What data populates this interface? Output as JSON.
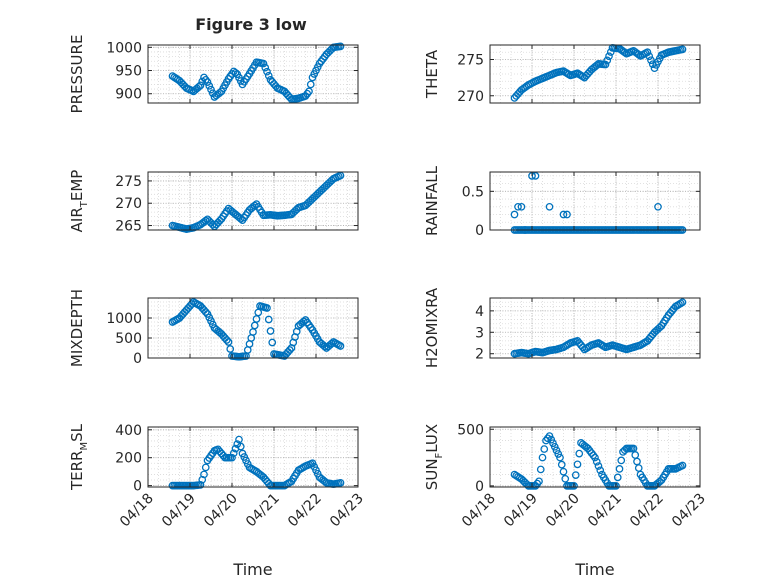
{
  "figure": {
    "title": "Figure 3 low"
  },
  "colors": {
    "marker": "#0072BD",
    "grid": "#B0B0B0",
    "axis": "#262626",
    "axes_bg": "#ffffff"
  },
  "chart_data": [
    {
      "type": "scatter",
      "name": "PRESSURE",
      "ylabel": "PRESSURE",
      "xlabel": "",
      "ylim": [
        880,
        1005
      ],
      "yticks": [
        900,
        950,
        1000
      ],
      "ytick_labels": [
        "900",
        "950",
        "1000"
      ],
      "xlim": [
        "04/18",
        "04/23"
      ],
      "xticks": [
        "04/18",
        "04/19",
        "04/20",
        "04/21",
        "04/22",
        "04/23"
      ],
      "show_xtick_labels": false,
      "grid": true,
      "x": [
        "2024-04-18 14:00",
        "2024-04-18 18:00",
        "2024-04-18 22:00",
        "2024-04-19 02:00",
        "2024-04-19 06:00",
        "2024-04-19 08:00",
        "2024-04-19 10:00",
        "2024-04-19 14:00",
        "2024-04-19 18:00",
        "2024-04-19 22:00",
        "2024-04-20 01:00",
        "2024-04-20 03:00",
        "2024-04-20 06:00",
        "2024-04-20 10:00",
        "2024-04-20 14:00",
        "2024-04-20 18:00",
        "2024-04-20 22:00",
        "2024-04-21 02:00",
        "2024-04-21 06:00",
        "2024-04-21 10:00",
        "2024-04-21 14:00",
        "2024-04-21 18:00",
        "2024-04-21 20:00",
        "2024-04-21 22:00",
        "2024-04-22 02:00",
        "2024-04-22 06:00",
        "2024-04-22 10:00",
        "2024-04-22 14:00"
      ],
      "y": [
        938,
        928,
        912,
        905,
        918,
        935,
        925,
        893,
        905,
        932,
        948,
        942,
        920,
        943,
        968,
        965,
        930,
        912,
        905,
        888,
        890,
        895,
        905,
        935,
        965,
        985,
        1000,
        1002
      ]
    },
    {
      "type": "scatter",
      "name": "THETA",
      "ylabel": "THETA",
      "xlabel": "",
      "ylim": [
        269,
        277
      ],
      "yticks": [
        270,
        275
      ],
      "ytick_labels": [
        "270",
        "275"
      ],
      "xlim": [
        "04/18",
        "04/23"
      ],
      "xticks": [
        "04/18",
        "04/19",
        "04/20",
        "04/21",
        "04/22",
        "04/23"
      ],
      "show_xtick_labels": false,
      "grid": true,
      "x": [
        "2024-04-18 14:00",
        "2024-04-18 18:00",
        "2024-04-18 22:00",
        "2024-04-19 02:00",
        "2024-04-19 06:00",
        "2024-04-19 10:00",
        "2024-04-19 14:00",
        "2024-04-19 18:00",
        "2024-04-19 22:00",
        "2024-04-20 02:00",
        "2024-04-20 06:00",
        "2024-04-20 10:00",
        "2024-04-20 14:00",
        "2024-04-20 18:00",
        "2024-04-20 22:00",
        "2024-04-21 02:00",
        "2024-04-21 06:00",
        "2024-04-21 10:00",
        "2024-04-21 14:00",
        "2024-04-21 18:00",
        "2024-04-21 22:00",
        "2024-04-22 02:00",
        "2024-04-22 06:00",
        "2024-04-22 10:00",
        "2024-04-22 14:00"
      ],
      "y": [
        269.7,
        270.8,
        271.5,
        272.0,
        272.4,
        272.8,
        273.2,
        273.4,
        272.8,
        273.1,
        272.5,
        273.6,
        274.4,
        274.3,
        276.6,
        276.5,
        275.8,
        276.2,
        275.5,
        276.0,
        273.8,
        275.6,
        276.0,
        276.2,
        276.4
      ]
    },
    {
      "type": "scatter",
      "name": "AIR_TEMP",
      "ylabel": "AIR_TEMP",
      "xlabel": "",
      "ylim": [
        264,
        277
      ],
      "yticks": [
        265,
        270,
        275
      ],
      "ytick_labels": [
        "265",
        "270",
        "275"
      ],
      "xlim": [
        "04/18",
        "04/23"
      ],
      "xticks": [
        "04/18",
        "04/19",
        "04/20",
        "04/21",
        "04/22",
        "04/23"
      ],
      "show_xtick_labels": false,
      "grid": true,
      "x": [
        "2024-04-18 14:00",
        "2024-04-18 18:00",
        "2024-04-18 22:00",
        "2024-04-19 02:00",
        "2024-04-19 06:00",
        "2024-04-19 10:00",
        "2024-04-19 14:00",
        "2024-04-19 18:00",
        "2024-04-19 22:00",
        "2024-04-20 02:00",
        "2024-04-20 06:00",
        "2024-04-20 10:00",
        "2024-04-20 14:00",
        "2024-04-20 18:00",
        "2024-04-20 22:00",
        "2024-04-21 02:00",
        "2024-04-21 06:00",
        "2024-04-21 10:00",
        "2024-04-21 14:00",
        "2024-04-21 18:00",
        "2024-04-21 22:00",
        "2024-04-22 02:00",
        "2024-04-22 06:00",
        "2024-04-22 10:00",
        "2024-04-22 14:00"
      ],
      "y": [
        265.0,
        264.6,
        264.2,
        264.5,
        265.2,
        266.4,
        264.8,
        266.5,
        268.8,
        267.5,
        266.2,
        268.5,
        269.8,
        267.3,
        267.4,
        267.2,
        267.3,
        267.5,
        269.0,
        269.5,
        271.0,
        272.5,
        274.0,
        275.5,
        276.2
      ]
    },
    {
      "type": "scatter",
      "name": "RAINFALL",
      "ylabel": "RAINFALL",
      "xlabel": "",
      "ylim": [
        0,
        0.75
      ],
      "yticks": [
        0,
        0.5
      ],
      "ytick_labels": [
        "0",
        "0.5"
      ],
      "xlim": [
        "04/18",
        "04/23"
      ],
      "xticks": [
        "04/18",
        "04/19",
        "04/20",
        "04/21",
        "04/22",
        "04/23"
      ],
      "show_xtick_labels": false,
      "grid": true,
      "x": [
        "2024-04-18 14:00",
        "2024-04-18 16:00",
        "2024-04-18 18:00",
        "2024-04-18 20:00",
        "2024-04-19 00:00",
        "2024-04-19 02:00",
        "2024-04-19 10:00",
        "2024-04-19 18:00",
        "2024-04-19 20:00",
        "2024-04-22 00:00"
      ],
      "y": [
        0.2,
        0.3,
        0.3,
        0.0,
        0.7,
        0.7,
        0.3,
        0.2,
        0.2,
        0.3
      ],
      "baseline": {
        "value": 0,
        "x_start": "2024-04-18 14:00",
        "x_end": "2024-04-22 14:00"
      }
    },
    {
      "type": "scatter",
      "name": "MIXDEPTH",
      "ylabel": "MIXDEPTH",
      "xlabel": "",
      "ylim": [
        0,
        1500
      ],
      "yticks": [
        0,
        500,
        1000
      ],
      "ytick_labels": [
        "0",
        "500",
        "1000"
      ],
      "xlim": [
        "04/18",
        "04/23"
      ],
      "xticks": [
        "04/18",
        "04/19",
        "04/20",
        "04/21",
        "04/22",
        "04/23"
      ],
      "show_xtick_labels": false,
      "grid": true,
      "x": [
        "2024-04-18 14:00",
        "2024-04-18 18:00",
        "2024-04-18 22:00",
        "2024-04-19 02:00",
        "2024-04-19 06:00",
        "2024-04-19 10:00",
        "2024-04-19 14:00",
        "2024-04-19 18:00",
        "2024-04-19 22:00",
        "2024-04-20 00:00",
        "2024-04-20 04:00",
        "2024-04-20 08:00",
        "2024-04-20 12:00",
        "2024-04-20 16:00",
        "2024-04-20 20:00",
        "2024-04-21 00:00",
        "2024-04-21 06:00",
        "2024-04-21 10:00",
        "2024-04-21 14:00",
        "2024-04-21 18:00",
        "2024-04-21 22:00",
        "2024-04-22 02:00",
        "2024-04-22 06:00",
        "2024-04-22 10:00",
        "2024-04-22 14:00"
      ],
      "y": [
        900,
        1000,
        1200,
        1400,
        1300,
        1100,
        750,
        600,
        400,
        50,
        30,
        50,
        650,
        1300,
        1250,
        100,
        50,
        250,
        800,
        950,
        700,
        400,
        250,
        400,
        300
      ]
    },
    {
      "type": "scatter",
      "name": "H2OMIXRA",
      "ylabel": "H2OMIXRA",
      "xlabel": "",
      "ylim": [
        1.8,
        4.6
      ],
      "yticks": [
        2,
        3,
        4
      ],
      "ytick_labels": [
        "2",
        "3",
        "4"
      ],
      "xlim": [
        "04/18",
        "04/23"
      ],
      "xticks": [
        "04/18",
        "04/19",
        "04/20",
        "04/21",
        "04/22",
        "04/23"
      ],
      "show_xtick_labels": false,
      "grid": true,
      "x": [
        "2024-04-18 14:00",
        "2024-04-18 18:00",
        "2024-04-18 22:00",
        "2024-04-19 02:00",
        "2024-04-19 06:00",
        "2024-04-19 10:00",
        "2024-04-19 14:00",
        "2024-04-19 18:00",
        "2024-04-19 22:00",
        "2024-04-20 02:00",
        "2024-04-20 06:00",
        "2024-04-20 10:00",
        "2024-04-20 14:00",
        "2024-04-20 18:00",
        "2024-04-20 22:00",
        "2024-04-21 02:00",
        "2024-04-21 06:00",
        "2024-04-21 10:00",
        "2024-04-21 14:00",
        "2024-04-21 18:00",
        "2024-04-21 22:00",
        "2024-04-22 02:00",
        "2024-04-22 06:00",
        "2024-04-22 10:00",
        "2024-04-22 14:00"
      ],
      "y": [
        2.0,
        2.05,
        2.0,
        2.1,
        2.05,
        2.15,
        2.2,
        2.3,
        2.5,
        2.6,
        2.2,
        2.4,
        2.5,
        2.3,
        2.4,
        2.3,
        2.2,
        2.3,
        2.4,
        2.6,
        3.0,
        3.3,
        3.8,
        4.2,
        4.4
      ]
    },
    {
      "type": "scatter",
      "name": "TERR_MSL",
      "ylabel": "TERR_MSL",
      "xlabel": "Time",
      "ylim": [
        -10,
        420
      ],
      "yticks": [
        0,
        200,
        400
      ],
      "ytick_labels": [
        "0",
        "200",
        "400"
      ],
      "xlim": [
        "04/18",
        "04/23"
      ],
      "xticks": [
        "04/18",
        "04/19",
        "04/20",
        "04/21",
        "04/22",
        "04/23"
      ],
      "show_xtick_labels": true,
      "grid": true,
      "x": [
        "2024-04-18 14:00",
        "2024-04-18 20:00",
        "2024-04-19 02:00",
        "2024-04-19 06:00",
        "2024-04-19 08:00",
        "2024-04-19 10:00",
        "2024-04-19 14:00",
        "2024-04-19 16:00",
        "2024-04-19 20:00",
        "2024-04-20 00:00",
        "2024-04-20 04:00",
        "2024-04-20 06:00",
        "2024-04-20 10:00",
        "2024-04-20 14:00",
        "2024-04-20 18:00",
        "2024-04-20 22:00",
        "2024-04-21 02:00",
        "2024-04-21 06:00",
        "2024-04-21 10:00",
        "2024-04-21 14:00",
        "2024-04-21 18:00",
        "2024-04-21 22:00",
        "2024-04-22 02:00",
        "2024-04-22 06:00",
        "2024-04-22 10:00",
        "2024-04-22 14:00"
      ],
      "y": [
        0,
        0,
        0,
        5,
        80,
        180,
        250,
        260,
        200,
        200,
        330,
        230,
        130,
        100,
        60,
        0,
        0,
        0,
        30,
        110,
        140,
        160,
        60,
        20,
        10,
        20
      ]
    },
    {
      "type": "scatter",
      "name": "SUN_FLUX",
      "ylabel": "SUN_FLUX",
      "xlabel": "Time",
      "ylim": [
        -10,
        520
      ],
      "yticks": [
        0,
        500
      ],
      "ytick_labels": [
        "0",
        "500"
      ],
      "xlim": [
        "04/18",
        "04/23"
      ],
      "xticks": [
        "04/18",
        "04/19",
        "04/20",
        "04/21",
        "04/22",
        "04/23"
      ],
      "show_xtick_labels": true,
      "grid": true,
      "x": [
        "2024-04-18 14:00",
        "2024-04-18 18:00",
        "2024-04-18 22:00",
        "2024-04-19 02:00",
        "2024-04-19 04:00",
        "2024-04-19 06:00",
        "2024-04-19 08:00",
        "2024-04-19 10:00",
        "2024-04-19 16:00",
        "2024-04-19 20:00",
        "2024-04-20 00:00",
        "2024-04-20 04:00",
        "2024-04-20 08:00",
        "2024-04-20 12:00",
        "2024-04-20 16:00",
        "2024-04-20 20:00",
        "2024-04-21 00:00",
        "2024-04-21 04:00",
        "2024-04-21 06:00",
        "2024-04-21 10:00",
        "2024-04-21 14:00",
        "2024-04-21 18:00",
        "2024-04-21 22:00",
        "2024-04-22 02:00",
        "2024-04-22 06:00",
        "2024-04-22 10:00",
        "2024-04-22 14:00"
      ],
      "y": [
        100,
        60,
        0,
        0,
        40,
        250,
        400,
        440,
        250,
        0,
        0,
        380,
        330,
        250,
        100,
        0,
        0,
        300,
        330,
        330,
        100,
        0,
        0,
        50,
        150,
        150,
        180
      ]
    }
  ]
}
